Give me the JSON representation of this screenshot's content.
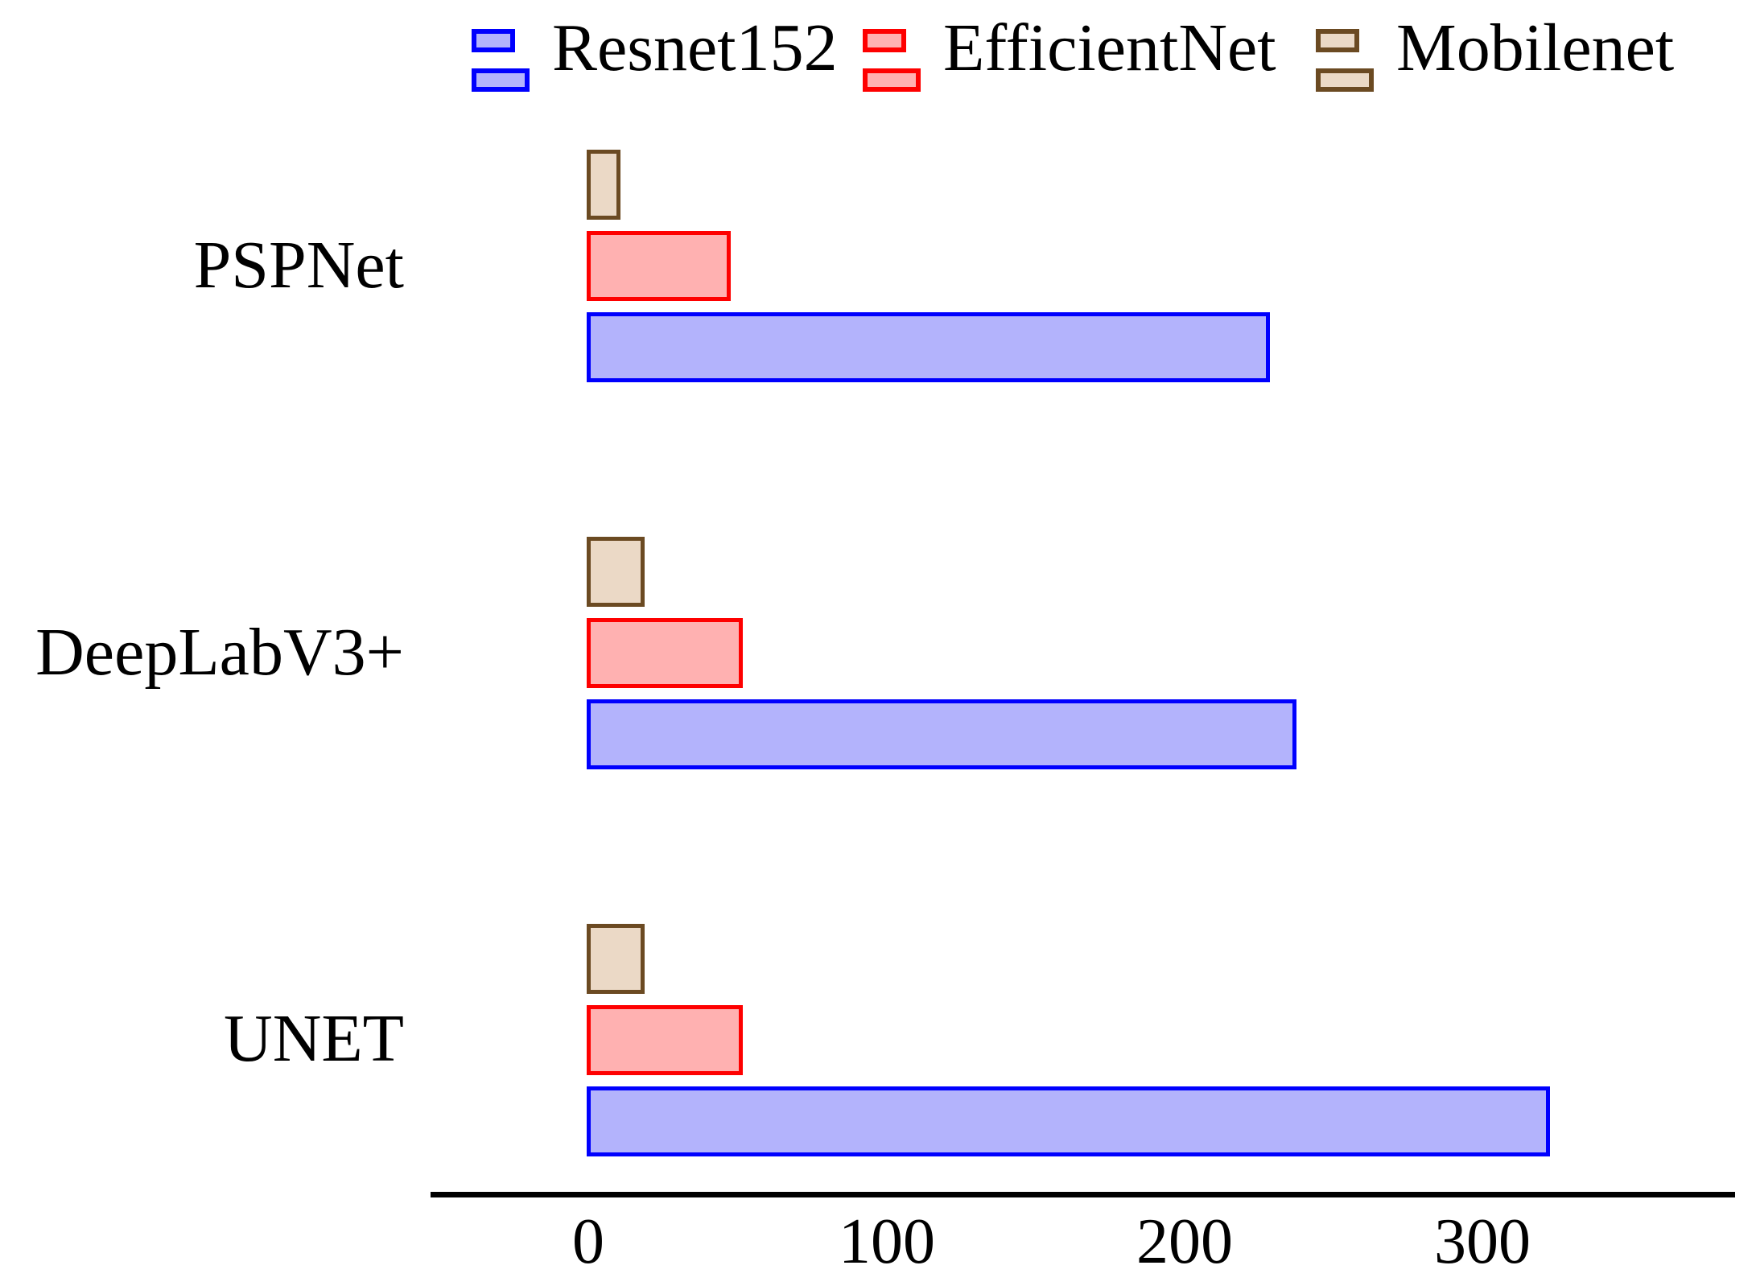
{
  "chart_data": {
    "type": "bar",
    "orientation": "horizontal",
    "title": "",
    "xlabel": "",
    "ylabel": "",
    "categories": [
      "PSPNet",
      "DeepLabV3+",
      "UNET"
    ],
    "series": [
      {
        "name": "Resnet152",
        "values": [
          228,
          237,
          322
        ],
        "fill": "#b3b3fc",
        "edge": "#0000fe"
      },
      {
        "name": "EfficientNet",
        "values": [
          47,
          51,
          51
        ],
        "fill": "#ffb1b1",
        "edge": "#fe0000"
      },
      {
        "name": "Mobilenet",
        "values": [
          10,
          18,
          18
        ],
        "fill": "#ebd9c6",
        "edge": "#6b4a22"
      }
    ],
    "xticks": [
      "0",
      "100",
      "200",
      "300"
    ],
    "xtick_values": [
      0,
      100,
      200,
      300
    ],
    "xlim": [
      -53,
      385
    ],
    "grid": false,
    "legend_position": "top"
  }
}
